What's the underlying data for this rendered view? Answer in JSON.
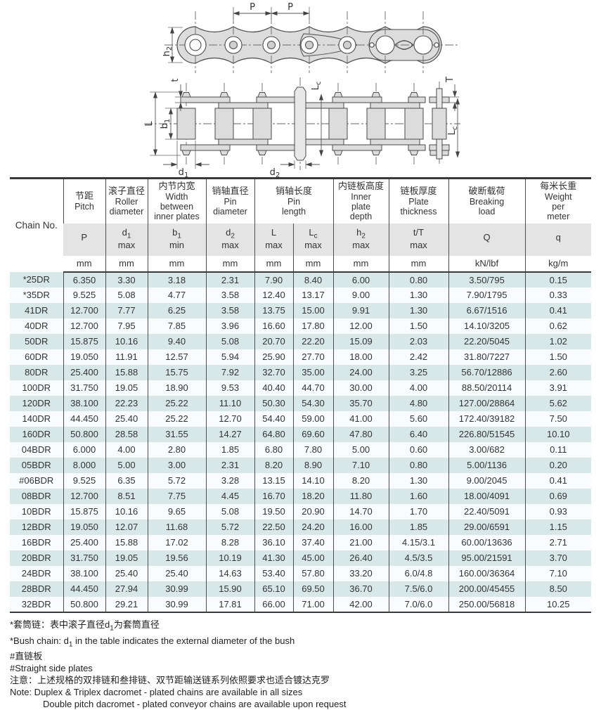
{
  "colors": {
    "row_stripe": "#d8e8e8",
    "row_alt": "#f9fcfc",
    "header_band": "#e4e4e4",
    "border_dark": "#3a3a3a",
    "line_dark": "#4a4a4a",
    "diagram_fill": "#dcdcdc",
    "text": "#333333"
  },
  "diagram": {
    "side_view": {
      "pitch": "P",
      "height": {
        "base": "h",
        "sub": "2"
      }
    },
    "plan_view": {
      "t": "t",
      "L": "L",
      "b1": {
        "base": "b",
        "sub": "1"
      },
      "d1": {
        "base": "d",
        "sub": "1"
      },
      "d2": {
        "base": "d",
        "sub": "2"
      },
      "lc": {
        "base": "L",
        "sub": "c"
      },
      "T": "T"
    }
  },
  "table": {
    "chain_no_label": "Chain No.",
    "groups": [
      {
        "cn": "节距",
        "en": "Pitch"
      },
      {
        "cn": "滚子直径",
        "en": "Roller\ndiameter"
      },
      {
        "cn": "内节内宽",
        "en": "Width\nbetween\ninner plates"
      },
      {
        "cn": "销轴直径",
        "en": "Pin\ndiameter"
      },
      {
        "cn": "销轴长度",
        "en": "Pin\nlength"
      },
      {
        "cn": "内链板高度",
        "en": "Inner\nplate\ndepth"
      },
      {
        "cn": "链板厚度",
        "en": "Plate\nthickness"
      },
      {
        "cn": "破断载荷",
        "en": "Breaking\nload"
      },
      {
        "cn": "每米长重",
        "en": "Weight\nper\nmeter"
      }
    ],
    "symbols": [
      {
        "base": "P",
        "sub": "",
        "note": ""
      },
      {
        "base": "d",
        "sub": "1",
        "note": "max"
      },
      {
        "base": "b",
        "sub": "1",
        "note": "min"
      },
      {
        "base": "d",
        "sub": "2",
        "note": "max"
      },
      {
        "base": "L",
        "sub": "",
        "note": "max"
      },
      {
        "base": "L",
        "sub": "c",
        "note": "max"
      },
      {
        "base": "h",
        "sub": "2",
        "note": "max"
      },
      {
        "base": "t/T",
        "sub": "",
        "note": "max"
      },
      {
        "base": "Q",
        "sub": "",
        "note": ""
      },
      {
        "base": "q",
        "sub": "",
        "note": ""
      }
    ],
    "units": [
      "mm",
      "mm",
      "mm",
      "mm",
      "mm",
      "mm",
      "mm",
      "mm",
      "kN/lbf",
      "kg/m"
    ],
    "rows": [
      [
        "*25DR",
        "6.350",
        "3.30",
        "3.18",
        "2.31",
        "7.90",
        "8.40",
        "6.00",
        "0.80",
        "3.50/795",
        "0.15"
      ],
      [
        "*35DR",
        "9.525",
        "5.08",
        "4.77",
        "3.58",
        "12.40",
        "13.17",
        "9.00",
        "1.30",
        "7.90/1795",
        "0.33"
      ],
      [
        "41DR",
        "12.700",
        "7.77",
        "6.25",
        "3.58",
        "13.75",
        "15.00",
        "9.91",
        "1.30",
        "6.67/1516",
        "0.41"
      ],
      [
        "40DR",
        "12.700",
        "7.95",
        "7.85",
        "3.96",
        "16.60",
        "17.80",
        "12.00",
        "1.50",
        "14.10/3205",
        "0.62"
      ],
      [
        "50DR",
        "15.875",
        "10.16",
        "9.40",
        "5.08",
        "20.70",
        "22.20",
        "15.09",
        "2.03",
        "22.20/5045",
        "1.02"
      ],
      [
        "60DR",
        "19.050",
        "11.91",
        "12.57",
        "5.94",
        "25.90",
        "27.70",
        "18.00",
        "2.42",
        "31.80/7227",
        "1.50"
      ],
      [
        "80DR",
        "25.400",
        "15.88",
        "15.75",
        "7.92",
        "32.70",
        "35.00",
        "24.00",
        "3.25",
        "56.70/12886",
        "2.60"
      ],
      [
        "100DR",
        "31.750",
        "19.05",
        "18.90",
        "9.53",
        "40.40",
        "44.70",
        "30.00",
        "4.00",
        "88.50/20114",
        "3.91"
      ],
      [
        "120DR",
        "38.100",
        "22.23",
        "25.22",
        "11.10",
        "50.30",
        "54.30",
        "35.70",
        "4.80",
        "127.00/28864",
        "5.62"
      ],
      [
        "140DR",
        "44.450",
        "25.40",
        "25.22",
        "12.70",
        "54.40",
        "59.00",
        "41.00",
        "5.60",
        "172.40/39182",
        "7.50"
      ],
      [
        "160DR",
        "50.800",
        "28.58",
        "31.55",
        "14.27",
        "64.80",
        "69.60",
        "47.80",
        "6.40",
        "226.80/51545",
        "10.10"
      ],
      [
        "04BDR",
        "6.000",
        "4.00",
        "2.80",
        "1.85",
        "6.80",
        "7.80",
        "5.00",
        "0.60",
        "3.00/682",
        "0.11"
      ],
      [
        "05BDR",
        "8.000",
        "5.00",
        "3.00",
        "2.31",
        "8.20",
        "8.90",
        "7.10",
        "0.80",
        "5.00/1136",
        "0.20"
      ],
      [
        "#06BDR",
        "9.525",
        "6.35",
        "5.72",
        "3.28",
        "13.15",
        "14.10",
        "8.20",
        "1.30",
        "9.00/2045",
        "0.41"
      ],
      [
        "08BDR",
        "12.700",
        "8.51",
        "7.75",
        "4.45",
        "16.70",
        "18.20",
        "11.80",
        "1.60",
        "18.00/4091",
        "0.69"
      ],
      [
        "10BDR",
        "15.875",
        "10.16",
        "9.65",
        "5.08",
        "19.50",
        "20.90",
        "14.70",
        "1.70",
        "22.40/5091",
        "0.93"
      ],
      [
        "12BDR",
        "19.050",
        "12.07",
        "11.68",
        "5.72",
        "22.50",
        "24.20",
        "16.00",
        "1.85",
        "29.00/6591",
        "1.15"
      ],
      [
        "16BDR",
        "25.400",
        "15.88",
        "17.02",
        "8.28",
        "36.10",
        "37.40",
        "21.00",
        "4.15/3.1",
        "60.00/13636",
        "2.71"
      ],
      [
        "20BDR",
        "31.750",
        "19.05",
        "19.56",
        "10.19",
        "41.30",
        "45.00",
        "26.40",
        "4.5/3.5",
        "95.00/21591",
        "3.70"
      ],
      [
        "24BDR",
        "38.100",
        "25.40",
        "25.40",
        "14.63",
        "53.40",
        "57.80",
        "33.20",
        "6.0/4.8",
        "160.00/36364",
        "7.10"
      ],
      [
        "28BDR",
        "44.450",
        "27.94",
        "30.99",
        "15.90",
        "65.10",
        "69.50",
        "36.70",
        "7.5/6.0",
        "200.00/45455",
        "8.50"
      ],
      [
        "32BDR",
        "50.800",
        "29.21",
        "30.99",
        "17.81",
        "66.00",
        "71.00",
        "42.00",
        "7.0/6.0",
        "250.00/56818",
        "10.25"
      ]
    ]
  },
  "footnotes": [
    {
      "pre": "*套筒链：表中滚子直径d",
      "sub": "1",
      "post": "为套筒直径",
      "indent": false
    },
    {
      "pre": "*Bush chain: d",
      "sub": "1",
      "post": " in the table indicates the external diameter of the bush",
      "indent": false
    },
    {
      "pre": "#直链板",
      "sub": "",
      "post": "",
      "indent": false
    },
    {
      "pre": "#Straight side plates",
      "sub": "",
      "post": "",
      "indent": false
    },
    {
      "pre": "注意：上述规格的双排链和叁排链、双节距输送链系列依照要求也适合镀达克罗",
      "sub": "",
      "post": "",
      "indent": false
    },
    {
      "pre": "Note:  Duplex & Triplex dacromet - plated chains are available in all sizes",
      "sub": "",
      "post": "",
      "indent": false
    },
    {
      "pre": "Double pitch dacromet - plated conveyor chains are available upon request",
      "sub": "",
      "post": "",
      "indent": true
    }
  ]
}
